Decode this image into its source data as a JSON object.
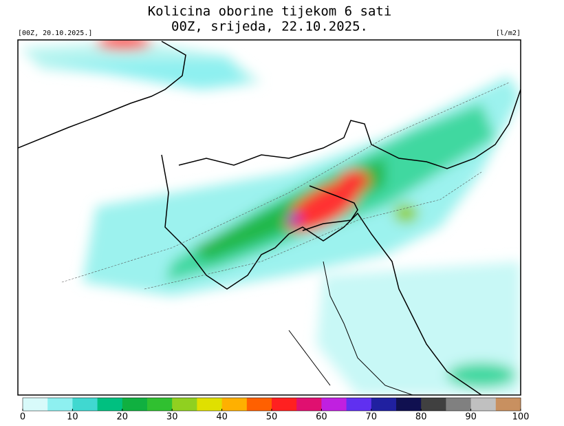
{
  "header": {
    "title": "Kolicina oborine tijekom 6 sati",
    "subtitle": "00Z, srijeda, 22.10.2025.",
    "run_label": "[00Z, 20.10.2025.]",
    "unit_label": "[l/m2]"
  },
  "colorbar": {
    "range": [
      0,
      100
    ],
    "ticks": [
      0,
      10,
      20,
      30,
      40,
      50,
      60,
      70,
      80,
      90,
      100
    ],
    "colors": [
      "#d8fafa",
      "#8ef0f0",
      "#40d8d0",
      "#00c080",
      "#10b040",
      "#30c030",
      "#90d020",
      "#e0e000",
      "#ffb000",
      "#ff6000",
      "#ff2020",
      "#e01070",
      "#c020e0",
      "#6030f0",
      "#2020a0",
      "#101050",
      "#404040",
      "#808080",
      "#c0c0c0",
      "#c89060"
    ]
  }
}
